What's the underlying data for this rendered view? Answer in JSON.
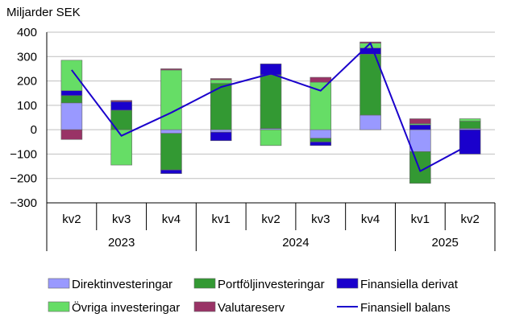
{
  "chart_data": {
    "type": "bar",
    "ylabel": "Miljarder SEK",
    "ylim": [
      -300,
      400
    ],
    "yticks": [
      400,
      300,
      200,
      100,
      0,
      -100,
      -200,
      -300
    ],
    "categories": [
      "kv2",
      "kv3",
      "kv4",
      "kv1",
      "kv2",
      "kv3",
      "kv4",
      "kv1",
      "kv2"
    ],
    "year_groups": [
      {
        "label": "2023",
        "count": 3
      },
      {
        "label": "2024",
        "count": 4
      },
      {
        "label": "2025",
        "count": 2
      }
    ],
    "series": [
      {
        "name": "Direktinvesteringar",
        "color": "#9999ff",
        "values": [
          110,
          0,
          -15,
          -10,
          5,
          -35,
          60,
          -90,
          5
        ]
      },
      {
        "name": "Portföljinvesteringar",
        "color": "#339933",
        "values": [
          30,
          80,
          -150,
          190,
          220,
          -15,
          250,
          -130,
          30
        ]
      },
      {
        "name": "Finansiella derivat",
        "color": "#1a00cc",
        "values": [
          20,
          35,
          -15,
          -35,
          45,
          -15,
          25,
          20,
          -100
        ]
      },
      {
        "name": "Övriga investeringar",
        "color": "#66dd66",
        "values": [
          125,
          -145,
          245,
          15,
          -65,
          195,
          20,
          5,
          10
        ]
      },
      {
        "name": "Valutareserv",
        "color": "#993366",
        "values": [
          -40,
          5,
          5,
          5,
          0,
          20,
          5,
          20,
          0
        ]
      }
    ],
    "line": {
      "name": "Finansiell balans",
      "color": "#1a00cc",
      "values": [
        245,
        -25,
        70,
        175,
        230,
        160,
        355,
        -170,
        -60
      ]
    }
  }
}
